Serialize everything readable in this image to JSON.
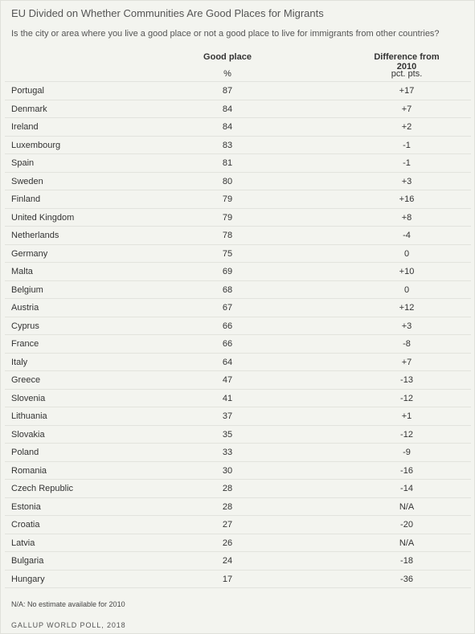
{
  "title": "EU Divided on Whether Communities Are Good Places for Migrants",
  "subtitle": "Is the city or area where you live a good place or not a good place to live for immigrants from other countries?",
  "columns": [
    {
      "header": "Good place",
      "unit": "%"
    },
    {
      "header": "Difference from 2010",
      "unit": "pct. pts."
    }
  ],
  "note": "N/A: No estimate available for 2010",
  "source": "GALLUP WORLD POLL, 2018",
  "chart_data": {
    "type": "table",
    "title": "EU Divided on Whether Communities Are Good Places for Migrants",
    "columns": [
      "Good place",
      "Difference from 2010"
    ],
    "rows": [
      {
        "country": "Portugal",
        "good_place": "87",
        "difference": "+17"
      },
      {
        "country": "Denmark",
        "good_place": "84",
        "difference": "+7"
      },
      {
        "country": "Ireland",
        "good_place": "84",
        "difference": "+2"
      },
      {
        "country": "Luxembourg",
        "good_place": "83",
        "difference": "-1"
      },
      {
        "country": "Spain",
        "good_place": "81",
        "difference": "-1"
      },
      {
        "country": "Sweden",
        "good_place": "80",
        "difference": "+3"
      },
      {
        "country": "Finland",
        "good_place": "79",
        "difference": "+16"
      },
      {
        "country": "United Kingdom",
        "good_place": "79",
        "difference": "+8"
      },
      {
        "country": "Netherlands",
        "good_place": "78",
        "difference": "-4"
      },
      {
        "country": "Germany",
        "good_place": "75",
        "difference": "0"
      },
      {
        "country": "Malta",
        "good_place": "69",
        "difference": "+10"
      },
      {
        "country": "Belgium",
        "good_place": "68",
        "difference": "0"
      },
      {
        "country": "Austria",
        "good_place": "67",
        "difference": "+12"
      },
      {
        "country": "Cyprus",
        "good_place": "66",
        "difference": "+3"
      },
      {
        "country": "France",
        "good_place": "66",
        "difference": "-8"
      },
      {
        "country": "Italy",
        "good_place": "64",
        "difference": "+7"
      },
      {
        "country": "Greece",
        "good_place": "47",
        "difference": "-13"
      },
      {
        "country": "Slovenia",
        "good_place": "41",
        "difference": "-12"
      },
      {
        "country": "Lithuania",
        "good_place": "37",
        "difference": "+1"
      },
      {
        "country": "Slovakia",
        "good_place": "35",
        "difference": "-12"
      },
      {
        "country": "Poland",
        "good_place": "33",
        "difference": "-9"
      },
      {
        "country": "Romania",
        "good_place": "30",
        "difference": "-16"
      },
      {
        "country": "Czech Republic",
        "good_place": "28",
        "difference": "-14"
      },
      {
        "country": "Estonia",
        "good_place": "28",
        "difference": "N/A"
      },
      {
        "country": "Croatia",
        "good_place": "27",
        "difference": "-20"
      },
      {
        "country": "Latvia",
        "good_place": "26",
        "difference": "N/A"
      },
      {
        "country": "Bulgaria",
        "good_place": "24",
        "difference": "-18"
      },
      {
        "country": "Hungary",
        "good_place": "17",
        "difference": "-36"
      }
    ]
  }
}
